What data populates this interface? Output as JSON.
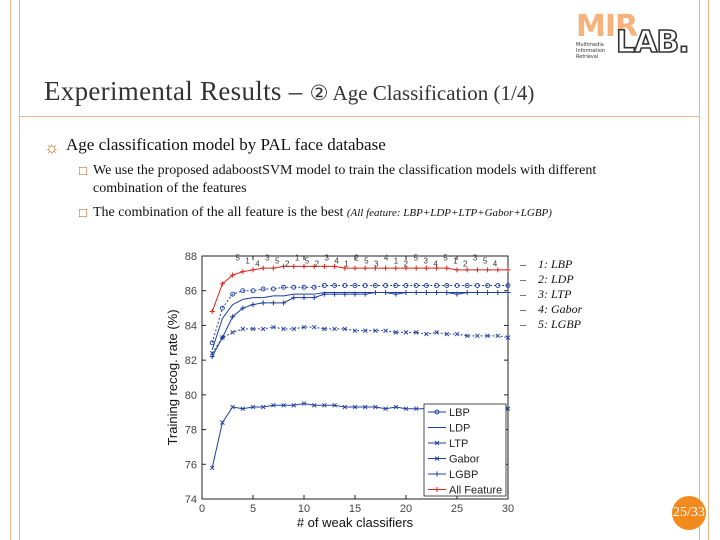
{
  "slide": {
    "title_main": "Experimental Results – ",
    "title_sub": "② Age Classification (1/4)",
    "point": "Age classification model by PAL face database",
    "sub_points": [
      "We use the proposed adaboostSVM model to train the classification models with different",
      "combination of the features",
      "The combination of the all feature is the best",
      "(All feature: LBP+LDP+LTP+Gabor+LGBP)"
    ],
    "page": "25/33",
    "bullet_icon": "sun-icon",
    "sub_bullet_icon": "square-glyph-icon"
  },
  "logo": {
    "mir": "MIR",
    "lab": "LAB.",
    "sub": [
      "Multimedia",
      "Information",
      "Retrieval"
    ]
  },
  "side_legend": [
    {
      "num": "1:",
      "name": "LBP"
    },
    {
      "num": "2:",
      "name": "LDP"
    },
    {
      "num": "3:",
      "name": "LTP"
    },
    {
      "num": "4:",
      "name": "Gabor"
    },
    {
      "num": "5:",
      "name": "LGBP"
    }
  ],
  "colors": {
    "accent_orange": "#f28a1e",
    "frame": "#e9b58d",
    "series_blue": "#1f3fa0",
    "series_red": "#d9261c"
  },
  "chart_data": {
    "type": "line",
    "xlabel": "# of weak classifiers",
    "ylabel": "Training recog. rate (%)",
    "xlim": [
      0,
      30
    ],
    "ylim": [
      74,
      88
    ],
    "x_ticks": [
      "0",
      "5",
      "10",
      "15",
      "20",
      "25",
      "30"
    ],
    "y_ticks": [
      "74",
      "76",
      "78",
      "80",
      "82",
      "84",
      "86",
      "88"
    ],
    "legend_placement": "bottom-right",
    "x": [
      1,
      2,
      3,
      4,
      5,
      6,
      7,
      8,
      9,
      10,
      11,
      12,
      13,
      14,
      15,
      16,
      17,
      18,
      19,
      20,
      21,
      22,
      23,
      24,
      25,
      26,
      27,
      28,
      29,
      30
    ],
    "series": [
      {
        "name": "LBP",
        "marker": "o",
        "color": "#1f3fa0",
        "values": [
          83.0,
          85.0,
          85.8,
          86.0,
          86.0,
          86.1,
          86.1,
          86.2,
          86.2,
          86.2,
          86.2,
          86.3,
          86.3,
          86.3,
          86.3,
          86.3,
          86.3,
          86.3,
          86.3,
          86.3,
          86.3,
          86.3,
          86.3,
          86.3,
          86.3,
          86.3,
          86.3,
          86.3,
          86.3,
          86.3
        ]
      },
      {
        "name": "LDP",
        "marker": "none",
        "color": "#1f3fa0",
        "values": [
          82.6,
          84.4,
          85.2,
          85.5,
          85.6,
          85.6,
          85.7,
          85.7,
          85.8,
          85.8,
          85.8,
          85.9,
          85.9,
          85.9,
          85.9,
          85.9,
          85.9,
          85.9,
          85.9,
          85.9,
          85.9,
          85.9,
          85.9,
          85.9,
          85.9,
          85.9,
          85.9,
          85.9,
          85.9,
          85.9
        ]
      },
      {
        "name": "LTP",
        "marker": "x",
        "color": "#1f3fa0",
        "values": [
          82.4,
          83.3,
          83.6,
          83.8,
          83.8,
          83.8,
          83.9,
          83.8,
          83.8,
          83.9,
          83.9,
          83.8,
          83.8,
          83.8,
          83.7,
          83.7,
          83.7,
          83.7,
          83.6,
          83.6,
          83.6,
          83.5,
          83.6,
          83.5,
          83.5,
          83.4,
          83.4,
          83.4,
          83.4,
          83.3
        ]
      },
      {
        "name": "Gabor",
        "marker": "x",
        "color": "#1f3fa0",
        "values": [
          75.8,
          78.4,
          79.3,
          79.2,
          79.3,
          79.3,
          79.4,
          79.4,
          79.4,
          79.5,
          79.4,
          79.4,
          79.4,
          79.3,
          79.3,
          79.3,
          79.3,
          79.2,
          79.3,
          79.2,
          79.2,
          79.2,
          79.2,
          79.2,
          79.2,
          79.2,
          79.2,
          79.2,
          79.2,
          79.2
        ]
      },
      {
        "name": "LGBP",
        "marker": "+",
        "color": "#1f3fa0",
        "values": [
          82.2,
          83.3,
          84.5,
          85.0,
          85.2,
          85.3,
          85.3,
          85.3,
          85.6,
          85.6,
          85.6,
          85.8,
          85.8,
          85.8,
          85.8,
          85.8,
          85.9,
          85.9,
          85.8,
          85.9,
          85.9,
          85.9,
          85.9,
          85.9,
          85.8,
          85.9,
          85.9,
          85.9,
          85.9,
          85.9
        ]
      },
      {
        "name": "All Feature",
        "marker": "+",
        "color": "#d9261c",
        "values": [
          84.8,
          86.4,
          86.9,
          87.1,
          87.2,
          87.3,
          87.3,
          87.4,
          87.4,
          87.4,
          87.4,
          87.4,
          87.4,
          87.3,
          87.3,
          87.3,
          87.3,
          87.3,
          87.3,
          87.3,
          87.3,
          87.3,
          87.3,
          87.3,
          87.2,
          87.2,
          87.2,
          87.2,
          87.2,
          87.2
        ]
      }
    ],
    "line_labels": [
      "5",
      "1",
      "4",
      "3",
      "5",
      "2",
      "1",
      "5",
      "2",
      "3",
      "4",
      "1",
      "2",
      "5",
      "3",
      "4",
      "1",
      "2",
      "5",
      "3",
      "4",
      "5",
      "1",
      "2",
      "3",
      "5",
      "4"
    ]
  }
}
